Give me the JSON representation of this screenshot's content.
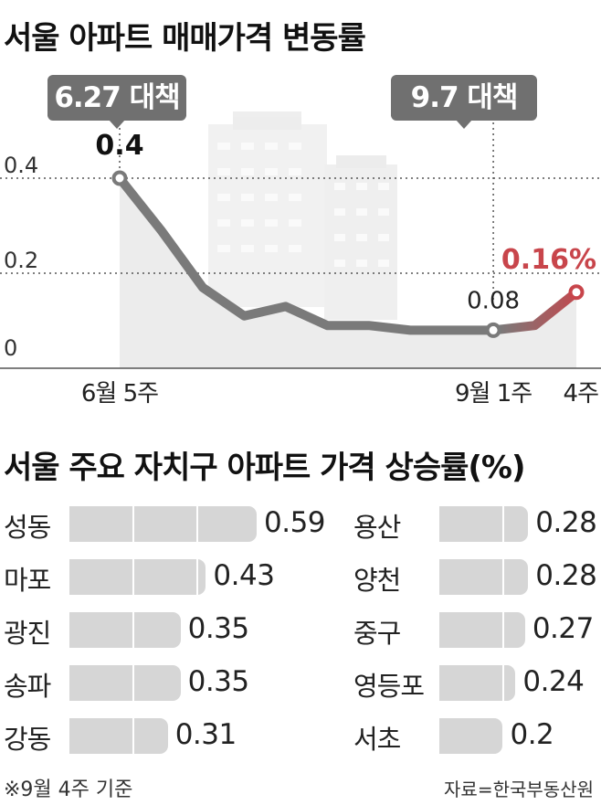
{
  "title1": "서울 아파트 매매가격 변동률",
  "title2": "서울 주요 자치구 아파트 가격 상승률(%)",
  "callouts": [
    "6.27 대책",
    "9.7 대책"
  ],
  "footnote": "※9월 4주 기준",
  "source": "자료=한국부동산원",
  "colors": {
    "line": "#7a7a7a",
    "highlight": "#c8454b",
    "area": "#ececec",
    "bar": "#d6d6d6",
    "callout": "#707070"
  },
  "chart_data": [
    {
      "type": "line",
      "title": "서울 아파트 매매가격 변동률",
      "x": [
        "6월 5주",
        "",
        "",
        "",
        "",
        "",
        "",
        "",
        "",
        "9월 1주",
        "",
        "4주"
      ],
      "tick_labels": [
        "6월 5주",
        "9월 1주",
        "4주"
      ],
      "y_ticks": [
        "0",
        "0.2",
        "0.4"
      ],
      "ylim": [
        0,
        0.45
      ],
      "values": [
        0.4,
        0.29,
        0.17,
        0.11,
        0.13,
        0.09,
        0.09,
        0.08,
        0.08,
        0.08,
        0.09,
        0.16
      ],
      "labeled_points": [
        {
          "index": 0,
          "label": "0.4"
        },
        {
          "index": 9,
          "label": "0.08"
        },
        {
          "index": 11,
          "label": "0.16%"
        }
      ],
      "grid": "dotted",
      "annotations": [
        "6.27 대책",
        "9.7 대책"
      ]
    },
    {
      "type": "bar",
      "orientation": "horizontal",
      "title": "서울 주요 자치구 아파트 가격 상승률(%)",
      "categories": [
        "성동",
        "마포",
        "광진",
        "송파",
        "강동",
        "용산",
        "양천",
        "중구",
        "영등포",
        "서초"
      ],
      "values": [
        0.59,
        0.43,
        0.35,
        0.35,
        0.31,
        0.28,
        0.28,
        0.27,
        0.24,
        0.2
      ],
      "value_labels": [
        "0.59",
        "0.43",
        "0.35",
        "0.35",
        "0.31",
        "0.28",
        "0.28",
        "0.27",
        "0.24",
        "0.2"
      ]
    }
  ]
}
